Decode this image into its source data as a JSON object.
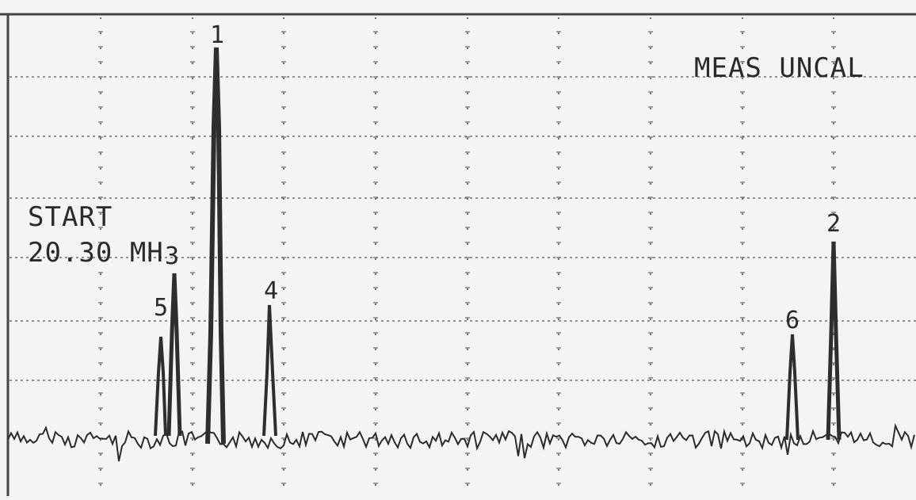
{
  "display": {
    "status": "MEAS UNCAL",
    "start_label": "START",
    "start_value": "20.30 MHz",
    "start_value_shown": "20.30 MH"
  },
  "markers": [
    "1",
    "2",
    "3",
    "4",
    "5",
    "6"
  ],
  "colors": {
    "trace": "#2b2b2b",
    "grid": "#7a7a7a",
    "background": "#f4f4f4"
  }
}
